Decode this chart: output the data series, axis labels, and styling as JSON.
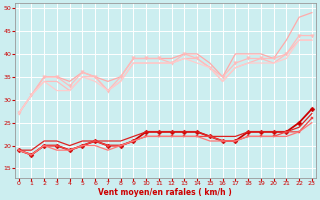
{
  "title": "",
  "xlabel": "Vent moyen/en rafales ( km/h )",
  "ylabel": "",
  "background_color": "#cceef0",
  "grid_color": "#aaaaaa",
  "x": [
    0,
    1,
    2,
    3,
    4,
    5,
    6,
    7,
    8,
    9,
    10,
    11,
    12,
    13,
    14,
    15,
    16,
    17,
    18,
    19,
    20,
    21,
    22,
    23
  ],
  "series": [
    {
      "y": [
        27,
        31,
        35,
        35,
        34,
        36,
        35,
        34,
        35,
        39,
        39,
        39,
        39,
        40,
        40,
        38,
        35,
        40,
        40,
        40,
        39,
        43,
        48,
        49
      ],
      "color": "#ffaaaa",
      "lw": 0.9,
      "marker": null
    },
    {
      "y": [
        27,
        31,
        35,
        35,
        33,
        36,
        35,
        32,
        35,
        39,
        39,
        39,
        38,
        40,
        39,
        37,
        35,
        38,
        39,
        39,
        39,
        40,
        44,
        44
      ],
      "color": "#ffbbbb",
      "lw": 0.9,
      "marker": "v",
      "marker_size": 2.5,
      "marker_every": 1
    },
    {
      "y": [
        27,
        31,
        34,
        34,
        32,
        35,
        35,
        32,
        34,
        38,
        38,
        38,
        38,
        39,
        39,
        37,
        34,
        37,
        38,
        39,
        38,
        40,
        43,
        43
      ],
      "color": "#ffbbbb",
      "lw": 0.9,
      "marker": null
    },
    {
      "y": [
        27,
        31,
        34,
        32,
        32,
        35,
        34,
        32,
        34,
        38,
        38,
        38,
        38,
        39,
        38,
        37,
        34,
        37,
        38,
        38,
        38,
        39,
        43,
        43
      ],
      "color": "#ffcccc",
      "lw": 0.9,
      "marker": null
    },
    {
      "y": [
        19,
        18,
        20,
        20,
        19,
        20,
        21,
        20,
        20,
        21,
        23,
        23,
        23,
        23,
        23,
        22,
        21,
        21,
        23,
        23,
        23,
        23,
        25,
        28
      ],
      "color": "#cc0000",
      "lw": 1.3,
      "marker": "D",
      "marker_size": 2.5,
      "marker_every": 1
    },
    {
      "y": [
        19,
        19,
        21,
        21,
        20,
        21,
        21,
        21,
        21,
        22,
        23,
        23,
        23,
        23,
        23,
        22,
        22,
        22,
        23,
        23,
        23,
        23,
        24,
        27
      ],
      "color": "#dd2222",
      "lw": 0.9,
      "marker": null
    },
    {
      "y": [
        19,
        18,
        20,
        20,
        19,
        20,
        21,
        20,
        20,
        21,
        22,
        22,
        22,
        22,
        22,
        22,
        21,
        21,
        22,
        22,
        22,
        23,
        23,
        26
      ],
      "color": "#ee4444",
      "lw": 0.9,
      "marker": "s",
      "marker_size": 2.0,
      "marker_every": 1
    },
    {
      "y": [
        19,
        18,
        20,
        19,
        19,
        20,
        20,
        19,
        20,
        21,
        22,
        22,
        22,
        22,
        22,
        21,
        21,
        21,
        22,
        22,
        22,
        22,
        23,
        25
      ],
      "color": "#ff7777",
      "lw": 0.9,
      "marker": null
    }
  ],
  "ylim": [
    13,
    51
  ],
  "xlim": [
    -0.3,
    23.3
  ],
  "yticks": [
    15,
    20,
    25,
    30,
    35,
    40,
    45,
    50
  ],
  "xticks": [
    0,
    1,
    2,
    3,
    4,
    5,
    6,
    7,
    8,
    9,
    10,
    11,
    12,
    13,
    14,
    15,
    16,
    17,
    18,
    19,
    20,
    21,
    22,
    23
  ]
}
